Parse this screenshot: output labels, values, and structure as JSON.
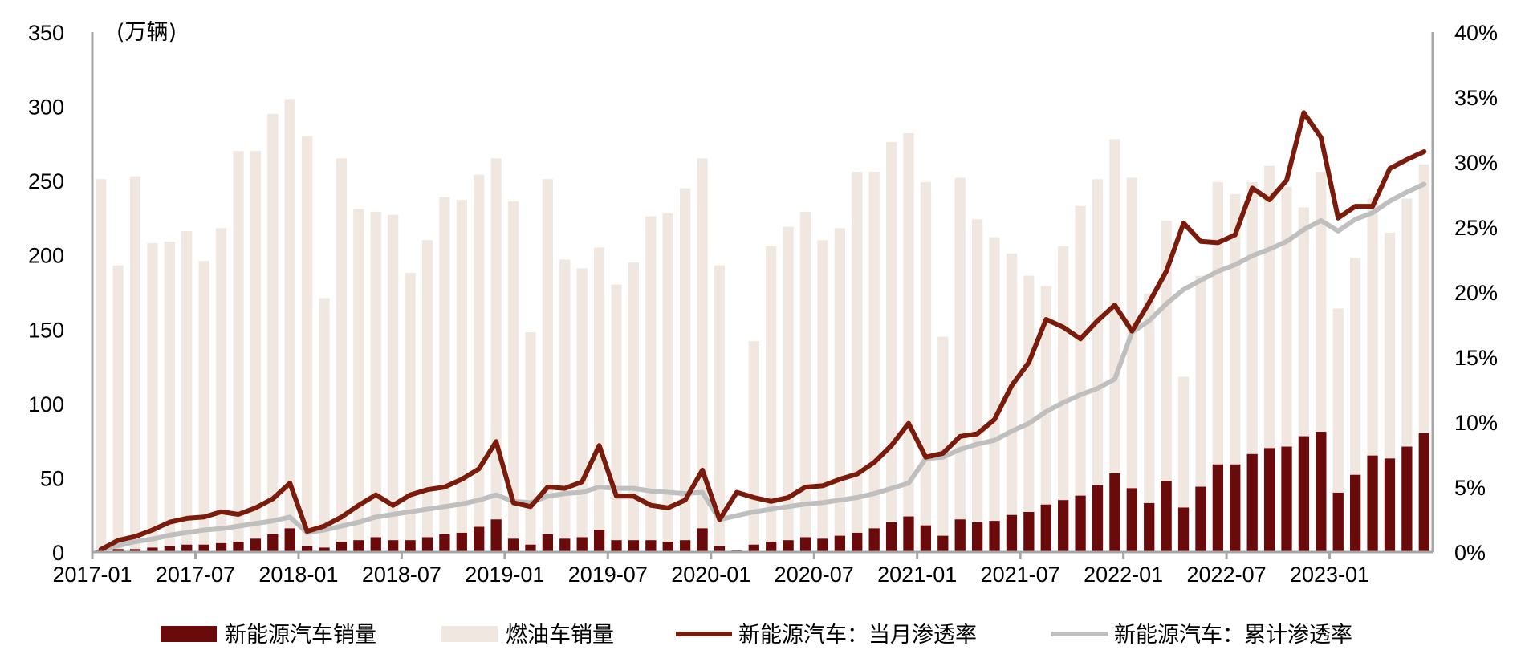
{
  "chart_data": {
    "type": "bar+line",
    "unit_label": "(万辆)",
    "y_left": {
      "range": [
        0,
        350
      ],
      "ticks": [
        "0",
        "50",
        "100",
        "150",
        "200",
        "250",
        "300",
        "350"
      ]
    },
    "y_right": {
      "range": [
        0,
        40
      ],
      "ticks": [
        "0%",
        "5%",
        "10%",
        "15%",
        "20%",
        "25%",
        "30%",
        "35%",
        "40%"
      ]
    },
    "x_tick_labels": [
      "2017-01",
      "2017-07",
      "2018-01",
      "2018-07",
      "2019-01",
      "2019-07",
      "2020-01",
      "2020-07",
      "2021-01",
      "2021-07",
      "2022-01",
      "2022-07",
      "2023-01"
    ],
    "colors": {
      "nev_bar": "#6b0a0a",
      "ice_bar": "#f0e8e0",
      "monthly_line": "#7a1b0c",
      "cumulative_line": "#bfbfbf",
      "axis": "#a6a6a6"
    },
    "legend": [
      "新能源汽车销量",
      "燃油车销量",
      "新能源汽车：当月渗透率",
      "新能源汽车：累计渗透率"
    ],
    "series": [
      {
        "name": "新能源汽车销量",
        "kind": "bar",
        "axis": "left",
        "values": [
          1,
          2,
          2,
          3,
          4,
          5,
          5,
          6,
          7,
          9,
          12,
          16,
          4,
          3,
          7,
          8,
          10,
          8,
          8,
          10,
          12,
          13,
          17,
          22,
          9,
          5,
          12,
          9,
          10,
          15,
          8,
          8,
          8,
          7,
          8,
          16,
          4,
          1,
          5,
          7,
          8,
          10,
          9,
          11,
          13,
          16,
          20,
          24,
          18,
          11,
          22,
          20,
          21,
          25,
          27,
          32,
          35,
          38,
          45,
          53,
          43,
          33,
          48,
          30,
          44,
          59,
          59,
          66,
          70,
          71,
          78,
          81,
          40,
          52,
          65,
          63,
          71,
          80
        ]
      },
      {
        "name": "燃油车销量",
        "kind": "bar",
        "axis": "left",
        "values": [
          251,
          193,
          253,
          208,
          209,
          216,
          196,
          218,
          270,
          270,
          295,
          305,
          280,
          171,
          265,
          231,
          229,
          227,
          188,
          210,
          239,
          237,
          254,
          265,
          236,
          148,
          251,
          197,
          191,
          205,
          180,
          195,
          226,
          228,
          245,
          265,
          193,
          1,
          142,
          206,
          219,
          229,
          210,
          218,
          256,
          256,
          276,
          282,
          249,
          145,
          252,
          224,
          212,
          201,
          186,
          179,
          206,
          233,
          251,
          278,
          252,
          174,
          223,
          118,
          186,
          249,
          241,
          249,
          260,
          246,
          232,
          256,
          164,
          198,
          238,
          215,
          238,
          261
        ]
      },
      {
        "name": "新能源汽车：当月渗透率",
        "kind": "line",
        "axis": "right",
        "values": [
          0.2,
          0.9,
          1.2,
          1.7,
          2.3,
          2.6,
          2.7,
          3.1,
          2.9,
          3.4,
          4.1,
          5.3,
          1.6,
          2.0,
          2.7,
          3.6,
          4.4,
          3.6,
          4.4,
          4.8,
          5.0,
          5.6,
          6.4,
          8.5,
          3.8,
          3.5,
          5.0,
          4.9,
          5.4,
          8.2,
          4.3,
          4.3,
          3.6,
          3.4,
          4.0,
          6.3,
          2.5,
          4.6,
          4.2,
          3.9,
          4.2,
          5.0,
          5.1,
          5.6,
          6.0,
          6.9,
          8.2,
          9.9,
          7.3,
          7.6,
          8.9,
          9.1,
          10.2,
          12.8,
          14.6,
          17.9,
          17.3,
          16.4,
          17.8,
          19.0,
          17.0,
          19.2,
          21.6,
          25.3,
          23.9,
          23.8,
          24.4,
          28.0,
          27.1,
          28.6,
          33.8,
          31.9,
          25.7,
          26.6,
          26.6,
          29.5,
          30.2,
          30.8
        ]
      },
      {
        "name": "新能源汽车：累计渗透率",
        "kind": "line",
        "axis": "right",
        "values": [
          0.2,
          0.5,
          0.8,
          1.0,
          1.3,
          1.5,
          1.7,
          1.8,
          2.0,
          2.2,
          2.4,
          2.7,
          1.5,
          1.7,
          2.0,
          2.3,
          2.7,
          2.9,
          3.1,
          3.3,
          3.5,
          3.7,
          4.0,
          4.4,
          3.9,
          3.8,
          4.3,
          4.5,
          4.6,
          5.0,
          4.9,
          4.9,
          4.7,
          4.6,
          4.5,
          4.6,
          2.5,
          2.8,
          3.1,
          3.3,
          3.5,
          3.7,
          3.8,
          4.0,
          4.2,
          4.5,
          4.9,
          5.3,
          7.2,
          7.3,
          7.9,
          8.3,
          8.6,
          9.3,
          9.9,
          10.8,
          11.5,
          12.1,
          12.6,
          13.3,
          16.9,
          17.8,
          19.1,
          20.2,
          20.9,
          21.6,
          22.1,
          22.8,
          23.3,
          23.9,
          24.8,
          25.5,
          24.7,
          25.6,
          26.1,
          27.0,
          27.7,
          28.3
        ]
      }
    ]
  }
}
